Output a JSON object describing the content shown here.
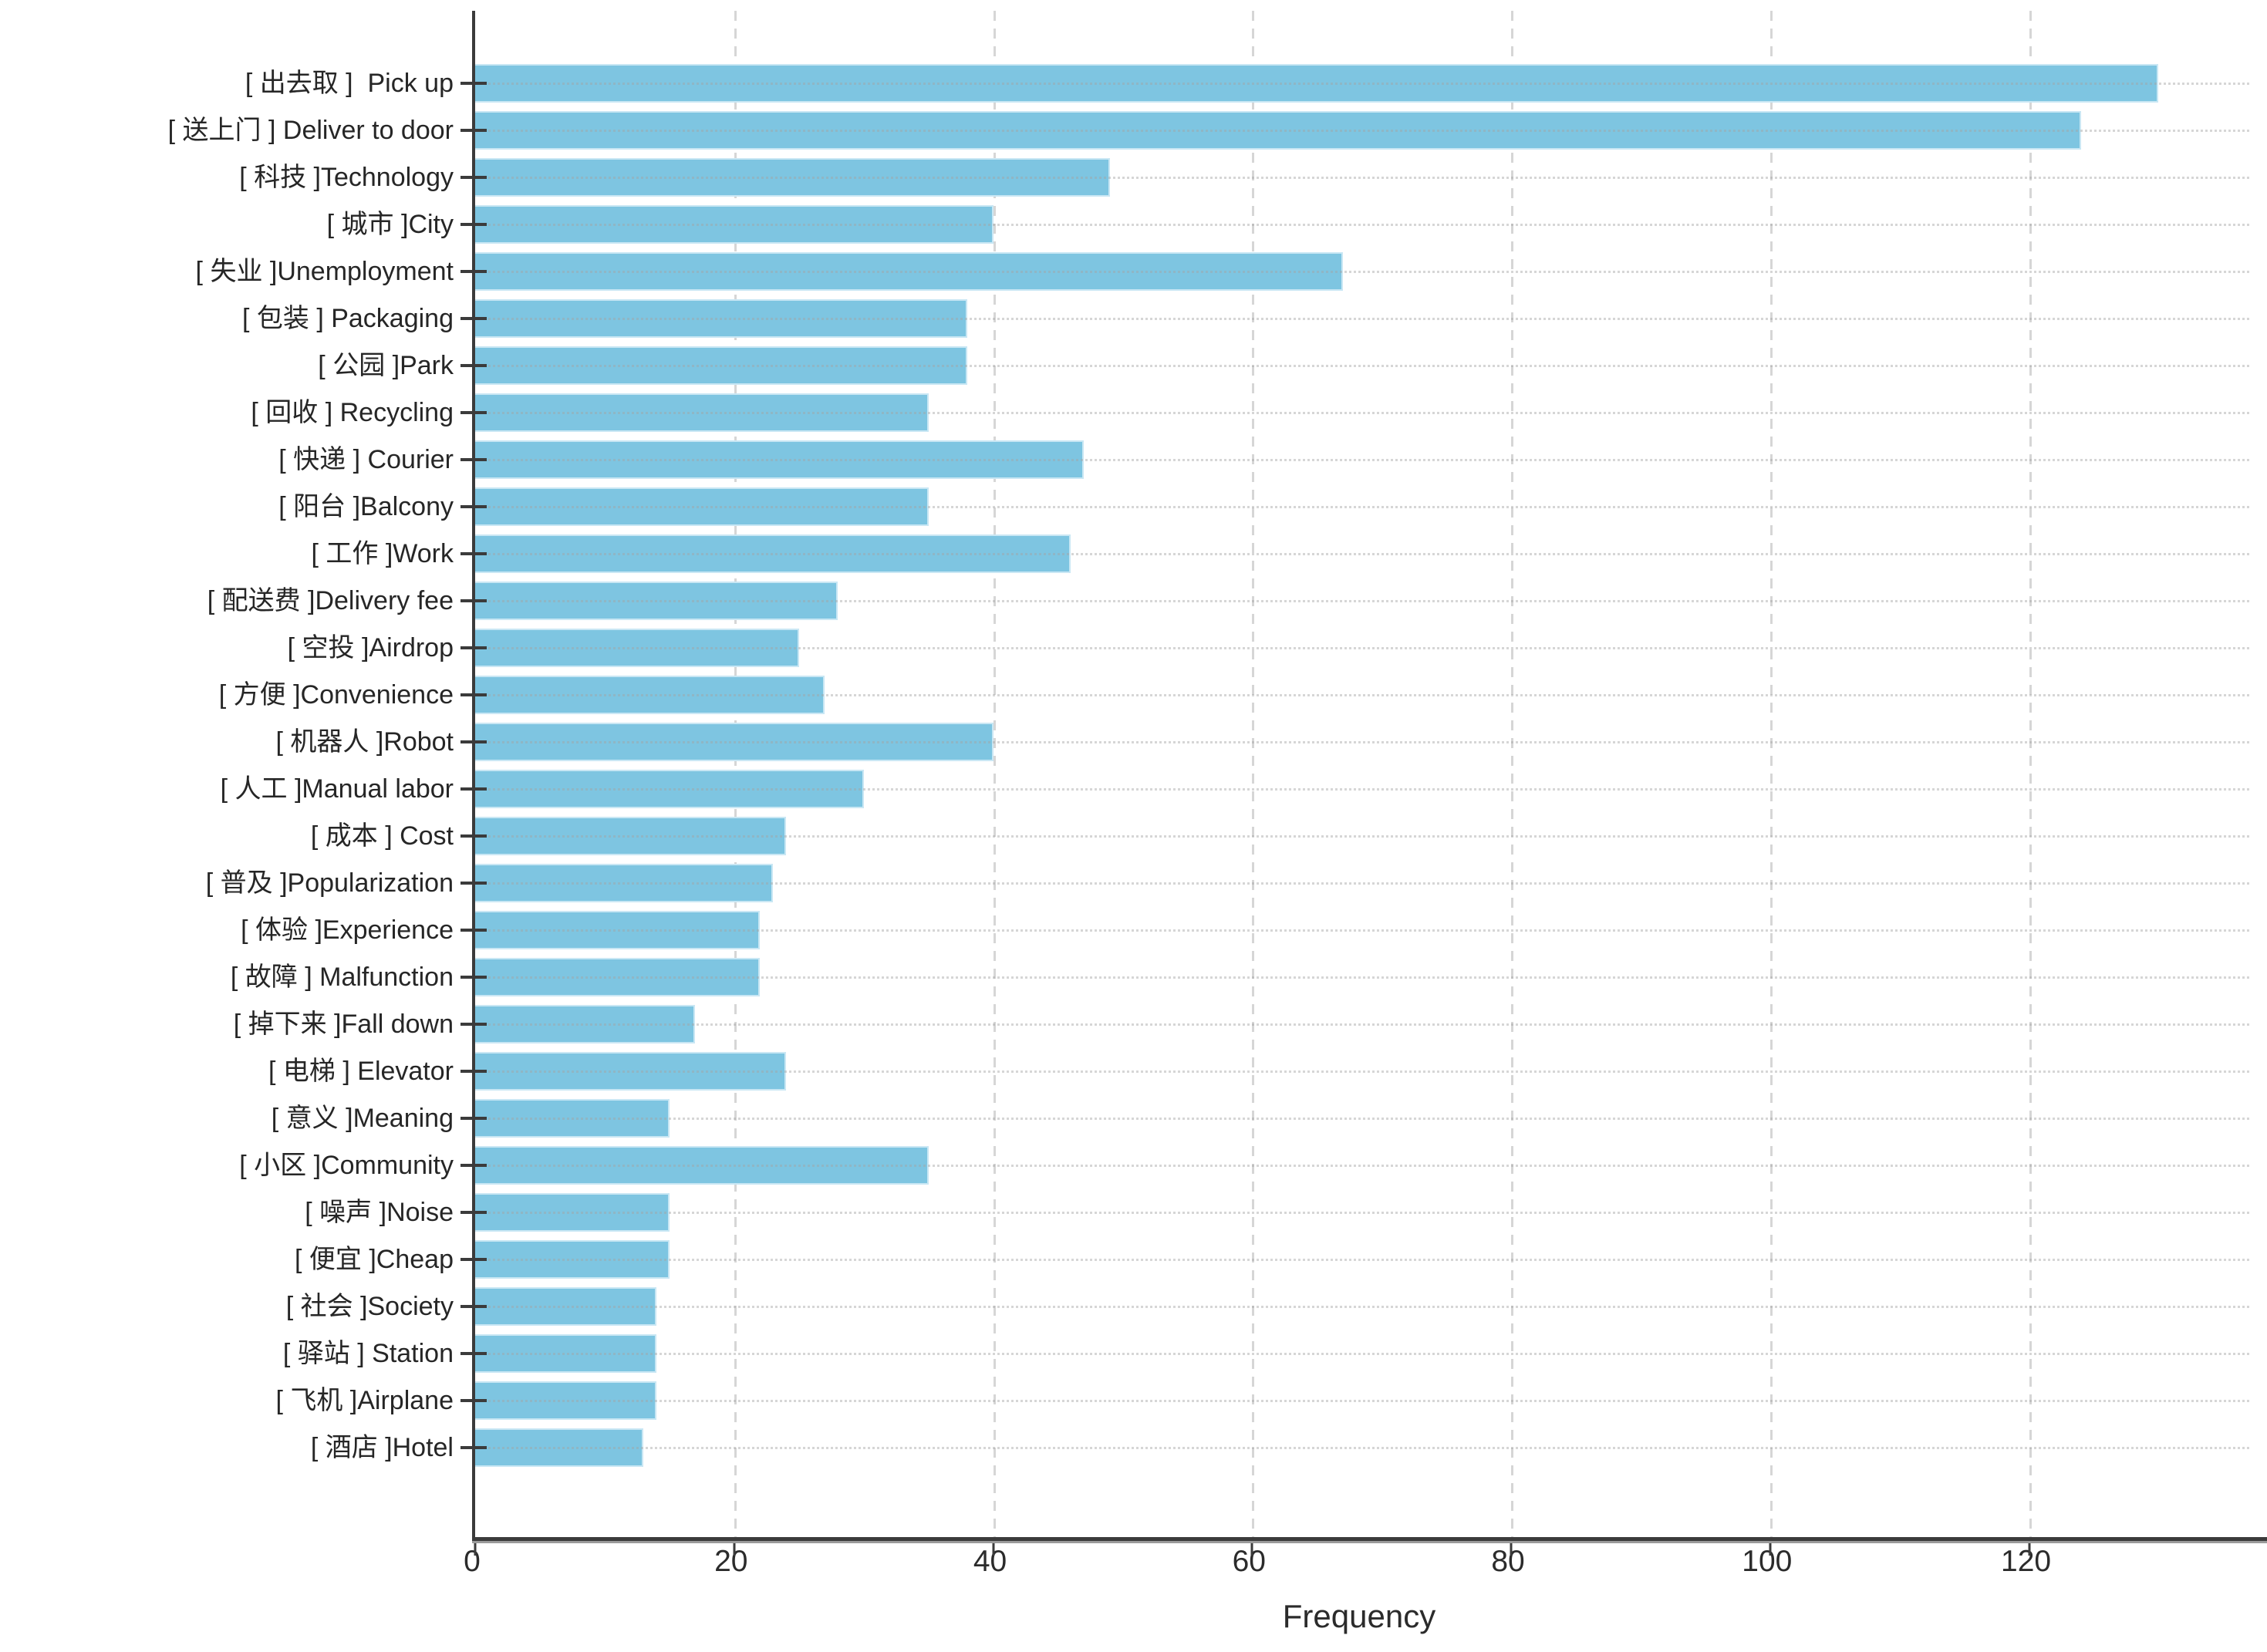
{
  "chart_data": {
    "type": "bar",
    "orientation": "horizontal",
    "title": "",
    "xlabel": "Frequency",
    "ylabel": "",
    "categories": [
      "[ 出去取 ]  Pick up",
      "[ 送上门 ] Deliver to door",
      "[ 科技 ]Technology",
      "[ 城市 ]City",
      "[ 失业 ]Unemployment",
      "[ 包装 ] Packaging",
      "[ 公园 ]Park",
      "[ 回收 ] Recycling",
      "[ 快递 ] Courier",
      "[ 阳台 ]Balcony",
      "[ 工作 ]Work",
      "[ 配送费 ]Delivery fee",
      "[ 空投 ]Airdrop",
      "[ 方便 ]Convenience",
      "[ 机器人 ]Robot",
      "[ 人工 ]Manual labor",
      "[ 成本 ] Cost",
      "[ 普及 ]Popularization",
      "[ 体验 ]Experience",
      "[ 故障 ] Malfunction",
      "[ 掉下来 ]Fall down",
      "[ 电梯 ] Elevator",
      "[ 意义 ]Meaning",
      "[ 小区 ]Community",
      "[ 噪声 ]Noise",
      "[ 便宜 ]Cheap",
      "[ 社会 ]Society",
      "[ 驿站 ] Station",
      "[ 飞机 ]Airplane",
      "[ 酒店 ]Hotel"
    ],
    "values": [
      130,
      124,
      49,
      40,
      67,
      38,
      38,
      35,
      47,
      35,
      46,
      28,
      25,
      27,
      40,
      30,
      24,
      23,
      22,
      22,
      17,
      24,
      15,
      35,
      15,
      15,
      14,
      14,
      14,
      13
    ],
    "xlim": [
      0,
      137
    ],
    "xticks": [
      0,
      20,
      40,
      60,
      80,
      100,
      120
    ],
    "grid": true,
    "legend": false,
    "bar_color": "#7EC5E1",
    "bar_edge_color": "#c9e7f4",
    "grid_color": "#d6d6d6",
    "axis_color": "#3b3b3b",
    "text_color": "#262626"
  }
}
